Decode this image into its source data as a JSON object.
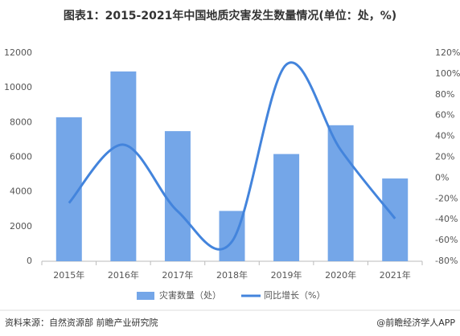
{
  "chart_data": {
    "type": "bar-line",
    "title": "图表1：2015-2021年中国地质灾害发生数量情况(单位：处，%)",
    "categories": [
      "2015年",
      "2016年",
      "2017年",
      "2018年",
      "2019年",
      "2020年",
      "2021年"
    ],
    "series": [
      {
        "name": "灾害数量（处）",
        "type": "bar",
        "color": "#74a6e8",
        "values": [
          8300,
          10940,
          7500,
          2900,
          6180,
          7840,
          4770
        ]
      },
      {
        "name": "同比增长（%）",
        "type": "line",
        "axis": "y2",
        "color": "#4384dc",
        "values": [
          -24,
          32,
          -32,
          -61,
          109,
          27,
          -39
        ]
      }
    ],
    "ylim": [
      0,
      12000
    ],
    "yticks": [
      0,
      2000,
      4000,
      6000,
      8000,
      10000,
      12000
    ],
    "y2lim": [
      -80,
      120
    ],
    "y2ticks": [
      {
        "value": -80,
        "label": "-80%"
      },
      {
        "value": -60,
        "label": "-60%"
      },
      {
        "value": -40,
        "label": "-40%"
      },
      {
        "value": -20,
        "label": "-20%"
      },
      {
        "value": 0,
        "label": "0%"
      },
      {
        "value": 20,
        "label": "20%"
      },
      {
        "value": 40,
        "label": "40%"
      },
      {
        "value": 60,
        "label": "60%"
      },
      {
        "value": 80,
        "label": "80%"
      },
      {
        "value": 100,
        "label": "100%"
      },
      {
        "value": 120,
        "label": "120%"
      }
    ],
    "grid": false,
    "source": "资料来源：自然资源部 前瞻产业研究院",
    "credit": "@前瞻经济学人APP"
  }
}
